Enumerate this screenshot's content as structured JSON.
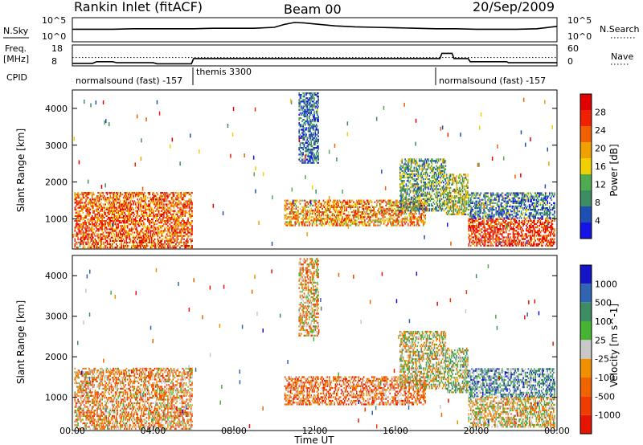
{
  "header": {
    "station": "Rankin Inlet (fitACF)",
    "beam": "Beam 00",
    "date": "20/Sep/2009"
  },
  "top_panels": {
    "nsky_label": "N.Sky",
    "nsky_ticks": [
      "10^5",
      "10^0"
    ],
    "nsearch_label": "N.Search",
    "nsearch_ticks": [
      "10^5",
      "10^0"
    ],
    "freq_label_1": "Freq.",
    "freq_label_2": "[MHz]",
    "freq_ticks": [
      "18",
      "8"
    ],
    "nave_label": "Nave",
    "nave_ticks": [
      "60",
      "0"
    ],
    "cpid_label": "CPID",
    "cpid_segments": [
      {
        "label": "normalsound (fast)  -157"
      },
      {
        "label": "themis 3300"
      },
      {
        "label": "normalsound (fast)  -157"
      }
    ]
  },
  "colors": {
    "power_scale": [
      "#1414e6",
      "#1e50b4",
      "#3c8c64",
      "#50aa50",
      "#f0d000",
      "#f0a000",
      "#f06000",
      "#f02000",
      "#e00000"
    ],
    "velocity_scale": [
      "#1414c8",
      "#3264b4",
      "#3c8c64",
      "#46b432",
      "#c8c8c8",
      "#f09000",
      "#f06400",
      "#f03c00",
      "#e61400"
    ]
  },
  "chart_data": [
    {
      "type": "line",
      "title": "N.Sky / N.Search",
      "xlabel": "",
      "ylabel": "N.Sky",
      "ylim": [
        0,
        5
      ],
      "log_scale": true,
      "x": [
        0,
        1,
        2,
        3,
        4,
        5,
        6,
        7,
        8,
        9,
        10,
        10.5,
        11,
        11.5,
        12,
        13,
        14,
        15,
        16,
        17,
        18,
        19,
        20,
        21,
        22,
        23,
        24
      ],
      "series": [
        {
          "name": "N.Sky",
          "values": [
            2.6,
            2.6,
            2.6,
            2.7,
            2.7,
            2.7,
            2.7,
            2.8,
            2.8,
            2.8,
            3.0,
            3.6,
            4.0,
            3.9,
            3.7,
            3.3,
            3.1,
            3.0,
            2.9,
            2.8,
            2.7,
            2.7,
            2.6,
            2.6,
            2.6,
            2.7,
            3.2
          ]
        }
      ]
    },
    {
      "type": "line",
      "title": "Freq / Nave",
      "xlabel": "",
      "ylabel": "Freq. [MHz]",
      "ylim": [
        8,
        18
      ],
      "x": [
        0,
        1,
        1.2,
        2,
        2.2,
        4,
        4.2,
        5.9,
        6,
        18.2,
        18.3,
        18.8,
        18.9,
        19.6,
        19.7,
        21.5,
        21.6,
        24
      ],
      "series": [
        {
          "name": "Freq.",
          "values": [
            9.2,
            9.2,
            10.0,
            10.0,
            9.5,
            9.5,
            9.0,
            9.0,
            11.5,
            11.5,
            14.0,
            14.0,
            11.5,
            11.5,
            10.0,
            10.0,
            9.5,
            9.5
          ]
        },
        {
          "name": "Nave",
          "values": [
            12.0,
            12.0,
            12.0,
            12.0,
            12.0,
            12.0,
            12.0,
            12.0,
            12.0,
            12.0,
            12.0,
            12.0,
            12.0,
            12.0,
            12.0,
            12.0,
            12.0,
            12.0
          ]
        }
      ]
    },
    {
      "type": "heatmap",
      "title": "",
      "xlabel": "",
      "ylabel": "Slant Range [km]",
      "colorbar_label": "Power [dB]",
      "colorbar_ticks": [
        4,
        8,
        12,
        16,
        20,
        24,
        28
      ],
      "xlim": [
        0,
        24
      ],
      "ylim": [
        180,
        4500
      ],
      "y_ticks": [
        1000,
        2000,
        3000,
        4000
      ],
      "regions": [
        {
          "t_start": 0.1,
          "t_end": 5.9,
          "r_low": 200,
          "r_high": 1700,
          "level": 0.75
        },
        {
          "t_start": 10.5,
          "t_end": 17.5,
          "r_low": 800,
          "r_high": 1500,
          "level": 0.65
        },
        {
          "t_start": 16.2,
          "t_end": 18.5,
          "r_low": 1200,
          "r_high": 2600,
          "level": 0.35
        },
        {
          "t_start": 18.5,
          "t_end": 19.6,
          "r_low": 1100,
          "r_high": 2200,
          "level": 0.45
        },
        {
          "t_start": 19.6,
          "t_end": 23.9,
          "r_low": 250,
          "r_high": 1000,
          "level": 0.85
        },
        {
          "t_start": 19.6,
          "t_end": 23.9,
          "r_low": 1000,
          "r_high": 1700,
          "level": 0.25
        },
        {
          "t_start": 11.2,
          "t_end": 12.2,
          "r_low": 2500,
          "r_high": 4400,
          "level": 0.2
        }
      ]
    },
    {
      "type": "heatmap",
      "title": "",
      "xlabel": "Time UT",
      "ylabel": "Slant Range [km]",
      "colorbar_label": "Velocity [m s^-1]",
      "colorbar_ticks": [
        "1000",
        "500",
        "100",
        "25",
        "-25",
        "-100",
        "-500",
        "-1000"
      ],
      "xlim": [
        0,
        24
      ],
      "ylim": [
        180,
        4500
      ],
      "x_ticks": [
        "00:00",
        "04:00",
        "08:00",
        "12:00",
        "16:00",
        "20:00",
        "00:00"
      ],
      "y_ticks": [
        1000,
        2000,
        3000,
        4000
      ],
      "regions": [
        {
          "t_start": 0.1,
          "t_end": 5.9,
          "r_low": 200,
          "r_high": 1700,
          "level": 0.65
        },
        {
          "t_start": 10.5,
          "t_end": 17.5,
          "r_low": 800,
          "r_high": 1500,
          "level": 0.72
        },
        {
          "t_start": 16.2,
          "t_end": 18.5,
          "r_low": 1200,
          "r_high": 2600,
          "level": 0.5
        },
        {
          "t_start": 18.5,
          "t_end": 19.6,
          "r_low": 1100,
          "r_high": 2200,
          "level": 0.45
        },
        {
          "t_start": 19.6,
          "t_end": 23.9,
          "r_low": 250,
          "r_high": 1000,
          "level": 0.55
        },
        {
          "t_start": 19.6,
          "t_end": 23.9,
          "r_low": 1000,
          "r_high": 1700,
          "level": 0.3
        },
        {
          "t_start": 11.2,
          "t_end": 12.2,
          "r_low": 2500,
          "r_high": 4400,
          "level": 0.6
        }
      ]
    }
  ]
}
